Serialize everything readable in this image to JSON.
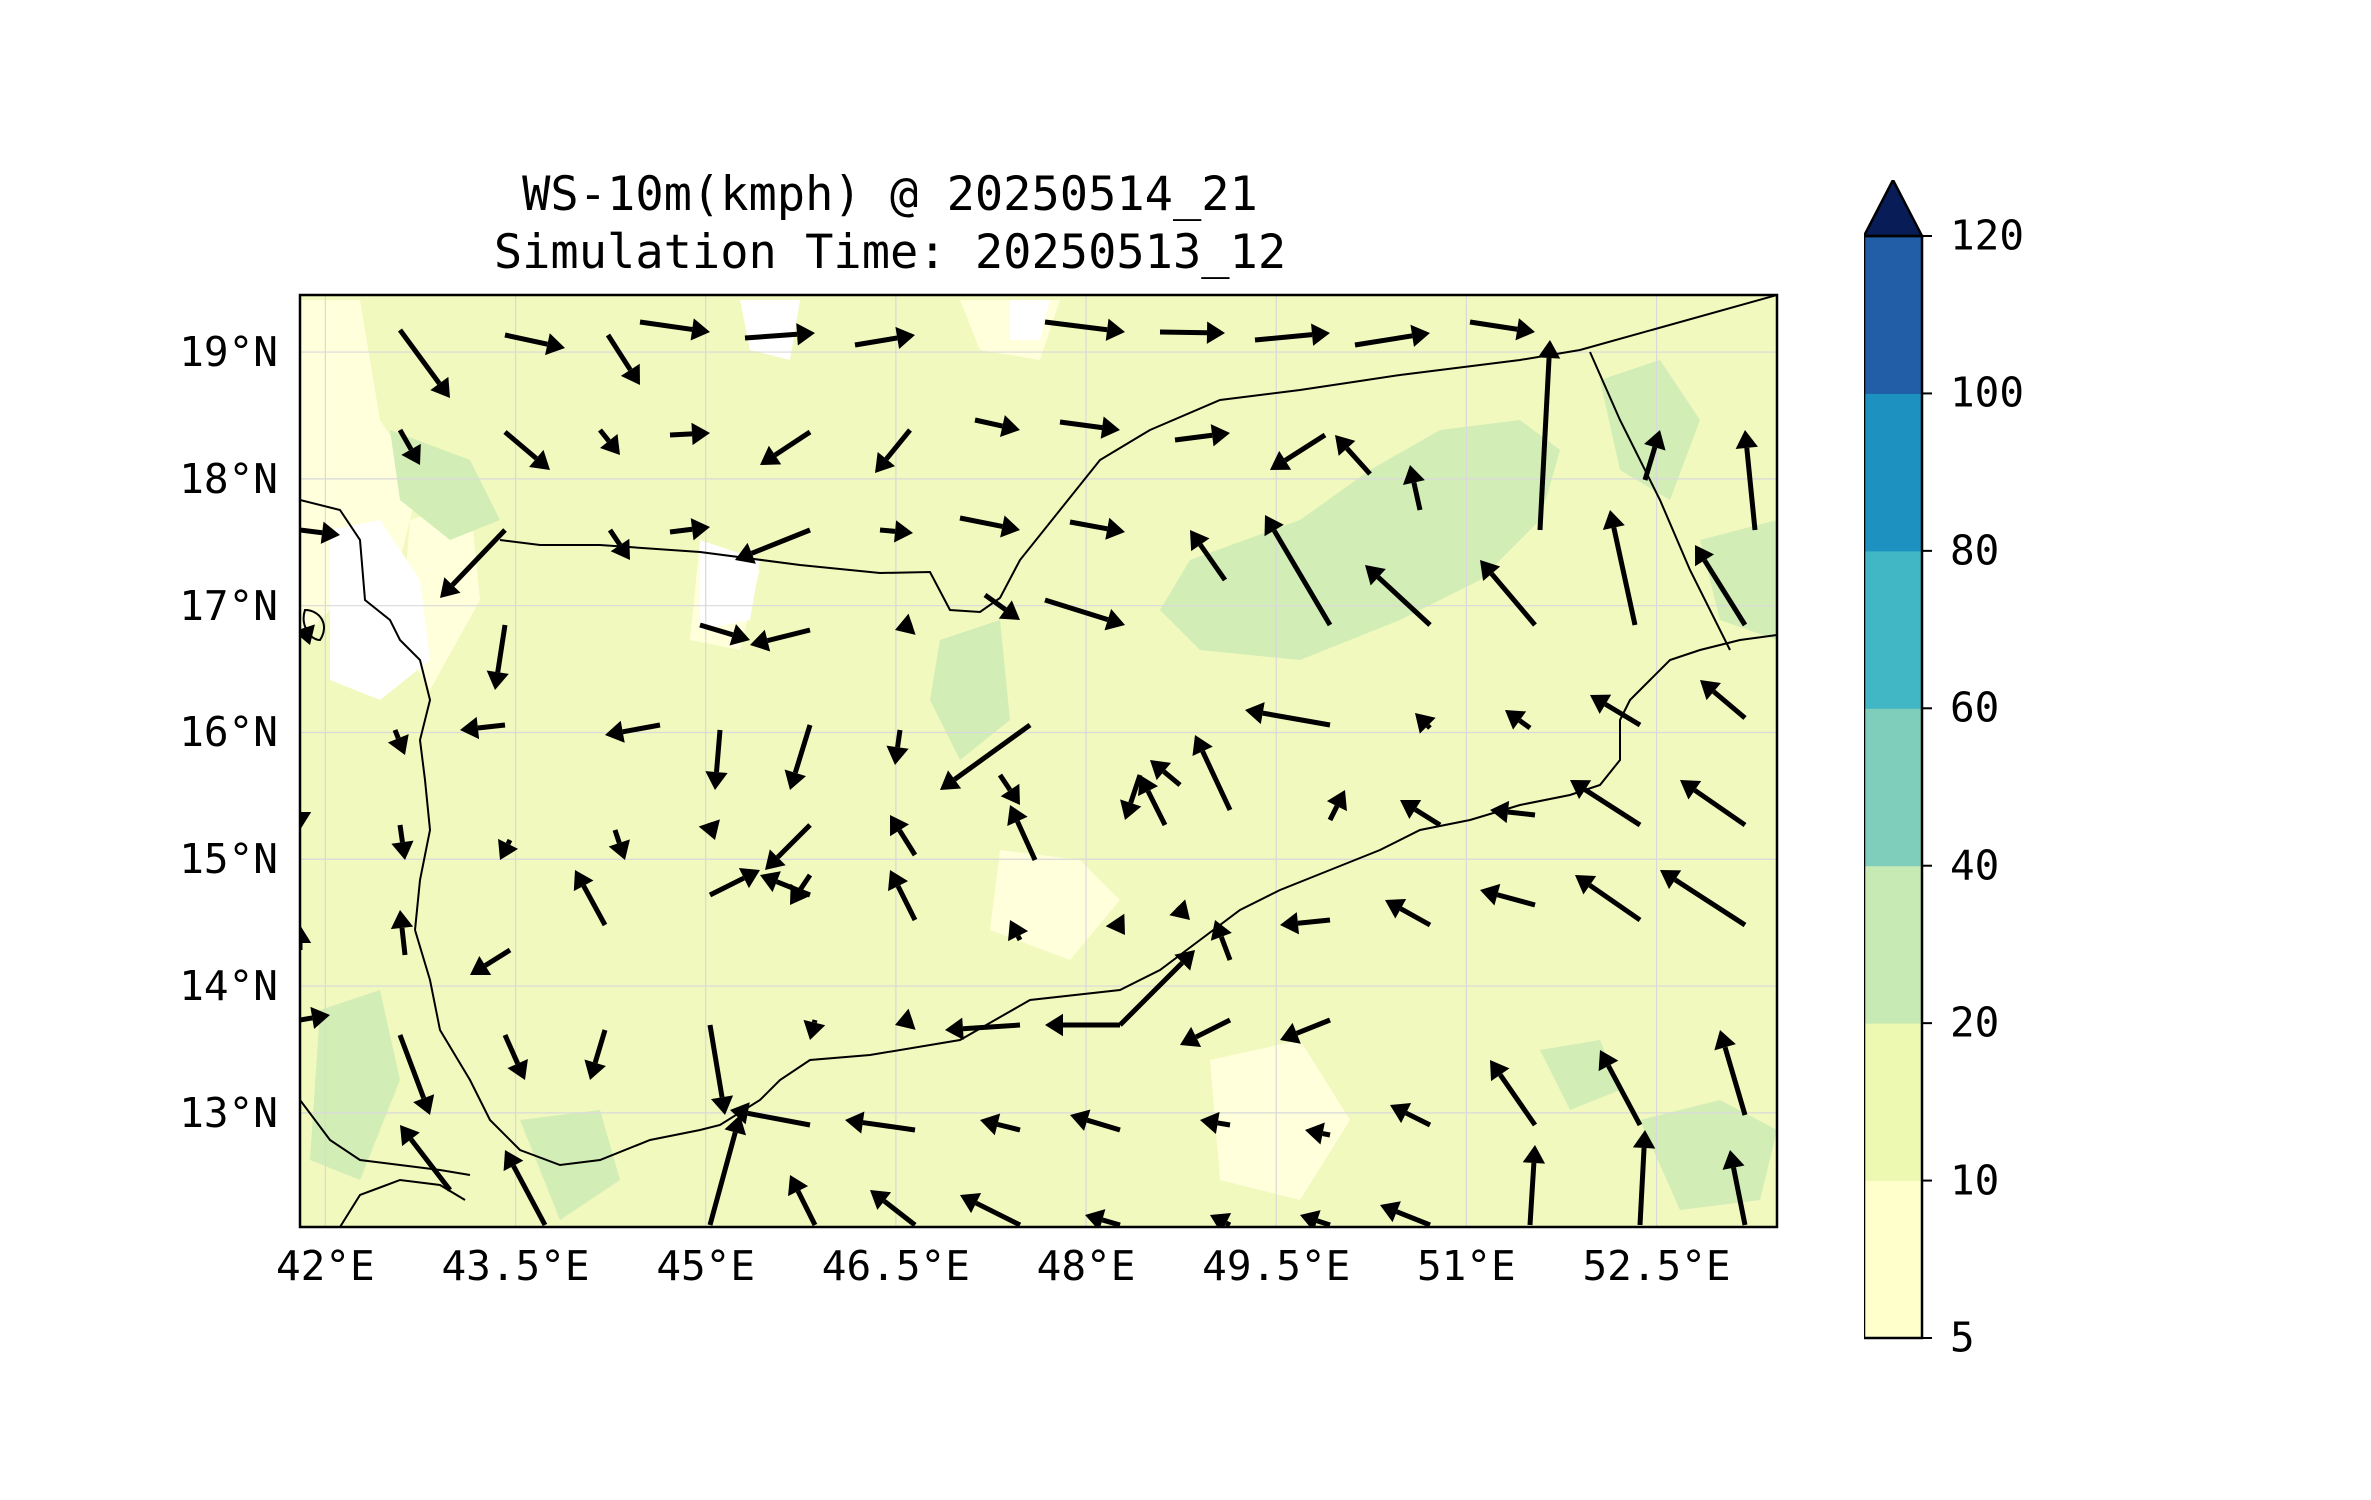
{
  "title": {
    "line1": "WS-10m(kmph) @ 20250514_21",
    "line2": "Simulation Time: 20250513_12"
  },
  "map": {
    "variable": "10 m wind speed (kmph) with wind direction arrows",
    "extent": {
      "lon_min": 41.8,
      "lon_max": 53.45,
      "lat_min": 12.1,
      "lat_max": 19.45
    },
    "background_color": "#ffffcc",
    "lat_ticks": [
      "19°N",
      "18°N",
      "17°N",
      "16°N",
      "15°N",
      "14°N",
      "13°N"
    ],
    "lon_ticks": [
      "42°E",
      "43.5°E",
      "45°E",
      "46.5°E",
      "48°E",
      "49.5°E",
      "51°E",
      "52.5°E"
    ],
    "lat_tick_values": [
      19,
      18,
      17,
      16,
      15,
      14,
      13
    ],
    "lon_tick_values": [
      42,
      43.5,
      45,
      46.5,
      48,
      49.5,
      51,
      52.5
    ],
    "gridlines": true
  },
  "colorbar": {
    "levels": [
      "5",
      "10",
      "20",
      "40",
      "60",
      "80",
      "100",
      "120"
    ],
    "level_values": [
      5,
      10,
      20,
      40,
      60,
      80,
      100,
      120
    ],
    "colors": [
      "#ffffcc",
      "#edf8b1",
      "#c7e9b4",
      "#7fcdbb",
      "#41b6c4",
      "#1d91c0",
      "#225ea8",
      "#0c2c84"
    ],
    "extend": "max",
    "extend_color": "#081d58"
  }
}
